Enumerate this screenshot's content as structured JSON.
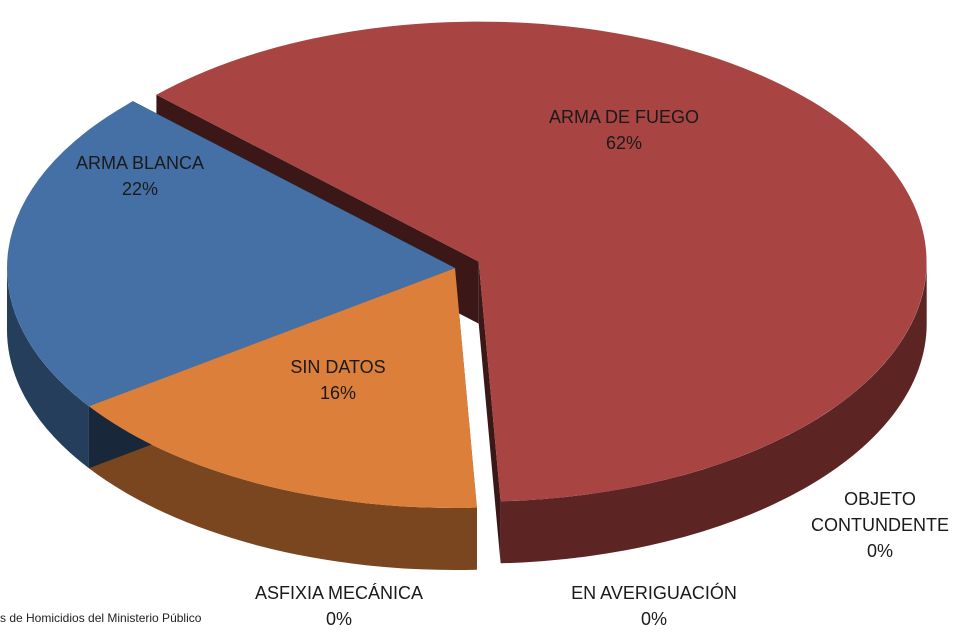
{
  "chart_data": {
    "type": "pie",
    "categories": [
      "ARMA DE FUEGO",
      "SIN DATOS",
      "ARMA BLANCA",
      "OBJETO CONTUNDENTE",
      "ASFIXIA MECÁNICA",
      "EN AVERIGUACIÓN"
    ],
    "values": [
      62,
      16,
      22,
      0,
      0,
      0
    ],
    "value_labels": [
      "62%",
      "16%",
      "22%",
      "0%",
      "0%",
      "0%"
    ],
    "colors": [
      "#a84442",
      "#dc7f3a",
      "#4470a5",
      "#8aa64a",
      "#7a5ca0",
      "#3aa0b8"
    ],
    "source": "s de Homicidios del Ministerio Público"
  }
}
